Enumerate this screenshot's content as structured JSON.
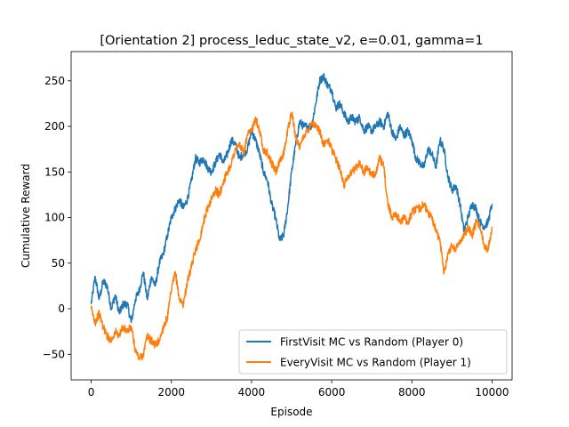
{
  "chart_data": {
    "type": "line",
    "title": "[Orientation 2] process_leduc_state_v2, e=0.01, gamma=1",
    "xlabel": "Episode",
    "ylabel": "Cumulative Reward",
    "xlim": [
      -500,
      10500
    ],
    "ylim": [
      -78,
      282
    ],
    "xticks": [
      0,
      2000,
      4000,
      6000,
      8000,
      10000
    ],
    "yticks": [
      -50,
      0,
      50,
      100,
      150,
      200,
      250
    ],
    "grid": false,
    "legend_position": "lower-right",
    "series": [
      {
        "name": "FirstVisit MC vs Random (Player 0)",
        "color": "#1f77b4",
        "x": [
          0,
          100,
          200,
          300,
          400,
          500,
          600,
          700,
          800,
          900,
          1000,
          1100,
          1200,
          1300,
          1400,
          1500,
          1600,
          1700,
          1800,
          1900,
          2000,
          2100,
          2200,
          2300,
          2400,
          2500,
          2600,
          2700,
          2800,
          2900,
          3000,
          3100,
          3200,
          3300,
          3400,
          3500,
          3600,
          3700,
          3800,
          3900,
          4000,
          4100,
          4200,
          4300,
          4400,
          4500,
          4600,
          4700,
          4800,
          4900,
          5000,
          5100,
          5200,
          5300,
          5400,
          5500,
          5600,
          5700,
          5800,
          5900,
          6000,
          6100,
          6200,
          6300,
          6400,
          6500,
          6600,
          6700,
          6800,
          6900,
          7000,
          7100,
          7200,
          7300,
          7400,
          7500,
          7600,
          7700,
          7800,
          7900,
          8000,
          8100,
          8200,
          8300,
          8400,
          8500,
          8600,
          8700,
          8800,
          8900,
          9000,
          9100,
          9200,
          9300,
          9400,
          9500,
          9600,
          9700,
          9800,
          9900,
          10000
        ],
        "y": [
          5,
          35,
          10,
          30,
          25,
          0,
          15,
          -5,
          5,
          5,
          -15,
          10,
          20,
          40,
          10,
          35,
          25,
          50,
          60,
          80,
          100,
          110,
          120,
          110,
          120,
          140,
          165,
          160,
          165,
          155,
          150,
          160,
          170,
          160,
          170,
          185,
          180,
          165,
          170,
          175,
          195,
          185,
          170,
          150,
          140,
          115,
          100,
          75,
          80,
          110,
          150,
          180,
          205,
          200,
          200,
          200,
          225,
          250,
          255,
          245,
          240,
          220,
          225,
          215,
          205,
          210,
          205,
          210,
          195,
          200,
          195,
          200,
          205,
          200,
          215,
          195,
          185,
          200,
          190,
          195,
          185,
          165,
          160,
          155,
          175,
          170,
          155,
          185,
          175,
          145,
          130,
          135,
          115,
          85,
          100,
          115,
          110,
          95,
          90,
          95,
          115
        ]
      },
      {
        "name": "EveryVisit MC vs Random (Player 1)",
        "color": "#ff7f0e",
        "x": [
          0,
          100,
          200,
          300,
          400,
          500,
          600,
          700,
          800,
          900,
          1000,
          1100,
          1200,
          1300,
          1400,
          1500,
          1600,
          1700,
          1800,
          1900,
          2000,
          2100,
          2200,
          2300,
          2400,
          2500,
          2600,
          2700,
          2800,
          2900,
          3000,
          3100,
          3200,
          3300,
          3400,
          3500,
          3600,
          3700,
          3800,
          3900,
          4000,
          4100,
          4200,
          4300,
          4400,
          4500,
          4600,
          4700,
          4800,
          4900,
          5000,
          5100,
          5200,
          5300,
          5400,
          5500,
          5600,
          5700,
          5800,
          5900,
          6000,
          6100,
          6200,
          6300,
          6400,
          6500,
          6600,
          6700,
          6800,
          6900,
          7000,
          7100,
          7200,
          7300,
          7400,
          7500,
          7600,
          7700,
          7800,
          7900,
          8000,
          8100,
          8200,
          8300,
          8400,
          8500,
          8600,
          8700,
          8800,
          8900,
          9000,
          9100,
          9200,
          9300,
          9400,
          9500,
          9600,
          9700,
          9800,
          9900,
          10000
        ],
        "y": [
          0,
          -15,
          -5,
          -20,
          -30,
          -35,
          -25,
          -30,
          -20,
          -25,
          -20,
          -45,
          -55,
          -50,
          -30,
          -35,
          -40,
          -35,
          -20,
          -10,
          20,
          40,
          10,
          5,
          30,
          45,
          65,
          75,
          95,
          110,
          120,
          130,
          125,
          140,
          150,
          160,
          175,
          180,
          170,
          190,
          195,
          210,
          195,
          175,
          170,
          160,
          150,
          160,
          170,
          195,
          215,
          190,
          175,
          190,
          195,
          205,
          200,
          195,
          180,
          185,
          175,
          165,
          155,
          135,
          145,
          150,
          155,
          160,
          150,
          155,
          145,
          150,
          165,
          155,
          115,
          100,
          105,
          95,
          100,
          95,
          105,
          110,
          110,
          115,
          105,
          100,
          85,
          75,
          40,
          60,
          70,
          65,
          75,
          80,
          90,
          80,
          95,
          90,
          70,
          65,
          90
        ]
      }
    ]
  }
}
